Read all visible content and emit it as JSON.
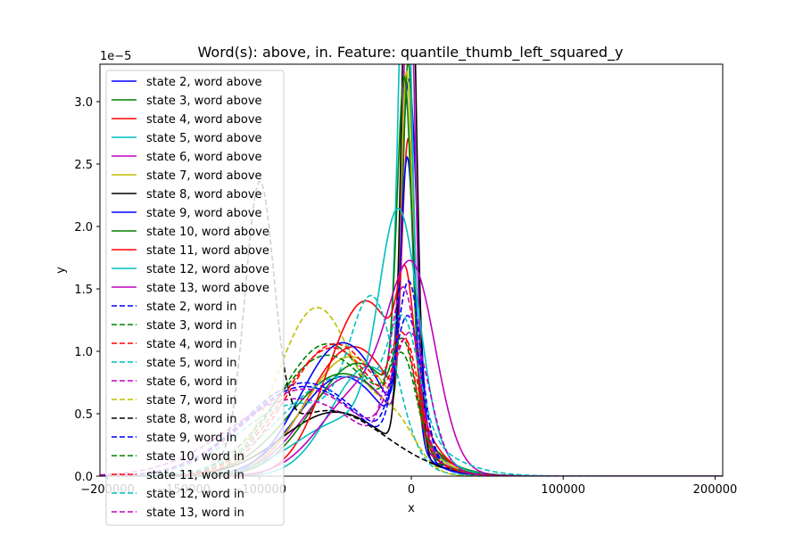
{
  "chart_data": {
    "type": "line",
    "title": "Word(s): above, in. Feature: quantile_thumb_left_squared_y",
    "xlabel": "x",
    "ylabel": "y",
    "y_offset_label": "1e−5",
    "xlim": [
      -205000,
      205000
    ],
    "ylim": [
      0,
      3.3
    ],
    "xticks": [
      {
        "value": -200000,
        "label": "−200000"
      },
      {
        "value": -100000,
        "label": "−100000"
      },
      {
        "value": 0,
        "label": "0"
      },
      {
        "value": 100000,
        "label": "100000"
      },
      {
        "value": 200000,
        "label": "200000"
      }
    ],
    "xticks_hidden": [
      {
        "value": -150000,
        "label": "−150000"
      }
    ],
    "yticks": [
      {
        "value": 0.0,
        "label": "0.0"
      },
      {
        "value": 0.5,
        "label": "0.5"
      },
      {
        "value": 1.0,
        "label": "1.0"
      },
      {
        "value": 1.5,
        "label": "1.5"
      },
      {
        "value": 2.0,
        "label": "2.0"
      },
      {
        "value": 2.5,
        "label": "2.5"
      },
      {
        "value": 3.0,
        "label": "3.0"
      }
    ],
    "legend_position": "upper-left",
    "grid": false,
    "series": [
      {
        "name": "state 2, word above",
        "color": "#0000ff",
        "dash": "solid",
        "components": [
          {
            "w": 0.6,
            "mu": -45000,
            "s": 30000
          },
          {
            "w": 0.4,
            "mu": -1500,
            "s": 5500
          }
        ]
      },
      {
        "name": "state 3, word above",
        "color": "#008000",
        "dash": "solid",
        "components": [
          {
            "w": 0.72,
            "mu": -45000,
            "s": 35000
          },
          {
            "w": 0.28,
            "mu": -2000,
            "s": 3800
          }
        ]
      },
      {
        "name": "state 4, word above",
        "color": "#ff0000",
        "dash": "solid",
        "components": [
          {
            "w": 0.78,
            "mu": -38000,
            "s": 30000
          },
          {
            "w": 0.22,
            "mu": -2000,
            "s": 4000
          }
        ]
      },
      {
        "name": "state 5, word above",
        "color": "#00bfbf",
        "dash": "solid",
        "components": [
          {
            "w": 0.55,
            "mu": -28000,
            "s": 25000
          },
          {
            "w": 0.45,
            "mu": -4000,
            "s": 4500
          }
        ]
      },
      {
        "name": "state 6, word above",
        "color": "#bf00bf",
        "dash": "solid",
        "components": [
          {
            "w": 0.6,
            "mu": -40000,
            "s": 30000
          },
          {
            "w": 0.4,
            "mu": -1500,
            "s": 4000
          }
        ]
      },
      {
        "name": "state 7, word above",
        "color": "#bfbf00",
        "dash": "solid",
        "components": [
          {
            "w": 0.72,
            "mu": -40000,
            "s": 30000
          },
          {
            "w": 0.28,
            "mu": -3000,
            "s": 4000
          }
        ]
      },
      {
        "name": "state 8, word above",
        "color": "#000000",
        "dash": "solid",
        "components": [
          {
            "w": 0.45,
            "mu": -50000,
            "s": 35000
          },
          {
            "w": 0.55,
            "mu": -1500,
            "s": 4500
          }
        ]
      },
      {
        "name": "state 9, word above",
        "color": "#0000ff",
        "dash": "solid",
        "components": [
          {
            "w": 0.75,
            "mu": -45000,
            "s": 28000
          },
          {
            "w": 0.25,
            "mu": -2500,
            "s": 4500
          }
        ]
      },
      {
        "name": "state 10, word above",
        "color": "#008000",
        "dash": "solid",
        "components": [
          {
            "w": 0.68,
            "mu": -35000,
            "s": 30000
          },
          {
            "w": 0.32,
            "mu": -4500,
            "s": 4800
          }
        ]
      },
      {
        "name": "state 11, word above",
        "color": "#ff0000",
        "dash": "solid",
        "components": [
          {
            "w": 0.88,
            "mu": -30000,
            "s": 25000
          },
          {
            "w": 0.12,
            "mu": -3500,
            "s": 5500
          }
        ]
      },
      {
        "name": "state 12, word above",
        "color": "#00bfbf",
        "dash": "solid",
        "components": [
          {
            "w": 0.4,
            "mu": -40000,
            "s": 35000
          },
          {
            "w": 0.6,
            "mu": -8000,
            "s": 13000
          }
        ]
      },
      {
        "name": "state 13, word above",
        "color": "#bf00bf",
        "dash": "solid",
        "components": [
          {
            "w": 0.5,
            "mu": -30000,
            "s": 28000
          },
          {
            "w": 0.5,
            "mu": 1500,
            "s": 15000
          }
        ]
      },
      {
        "name": "state 2, word in",
        "color": "#0000ff",
        "dash": "dashed",
        "components": [
          {
            "w": 0.75,
            "mu": -70000,
            "s": 40000
          },
          {
            "w": 0.25,
            "mu": -2000,
            "s": 9000
          }
        ]
      },
      {
        "name": "state 3, word in",
        "color": "#008000",
        "dash": "dashed",
        "components": [
          {
            "w": 0.85,
            "mu": -55000,
            "s": 32000
          },
          {
            "w": 0.15,
            "mu": -5000,
            "s": 9000
          }
        ]
      },
      {
        "name": "state 4, word in",
        "color": "#ff0000",
        "dash": "dashed",
        "components": [
          {
            "w": 0.85,
            "mu": -52000,
            "s": 33000
          },
          {
            "w": 0.15,
            "mu": -3000,
            "s": 8000
          }
        ]
      },
      {
        "name": "state 5, word in",
        "color": "#00bfbf",
        "dash": "dashed",
        "components": [
          {
            "w": 0.55,
            "mu": -75000,
            "s": 38000
          },
          {
            "w": 0.45,
            "mu": -25000,
            "s": 15000
          }
        ]
      },
      {
        "name": "state 6, word in",
        "color": "#bf00bf",
        "dash": "dashed",
        "components": [
          {
            "w": 0.7,
            "mu": -75000,
            "s": 45000
          },
          {
            "w": 0.3,
            "mu": -5000,
            "s": 9000
          }
        ]
      },
      {
        "name": "state 7, word in",
        "color": "#bfbf00",
        "dash": "dashed",
        "components": [
          {
            "w": 0.88,
            "mu": -62000,
            "s": 26000
          },
          {
            "w": 0.12,
            "mu": -10000,
            "s": 14000
          }
        ]
      },
      {
        "name": "state 8, word in",
        "color": "#000000",
        "dash": "dashed",
        "components": [
          {
            "w": 0.5,
            "mu": -100000,
            "s": 9500
          },
          {
            "w": 0.5,
            "mu": -55000,
            "s": 38000
          }
        ]
      },
      {
        "name": "state 9, word in",
        "color": "#0000ff",
        "dash": "dashed",
        "components": [
          {
            "w": 0.72,
            "mu": -70000,
            "s": 40000
          },
          {
            "w": 0.28,
            "mu": -1500,
            "s": 8000
          }
        ]
      },
      {
        "name": "state 10, word in",
        "color": "#008000",
        "dash": "dashed",
        "components": [
          {
            "w": 0.85,
            "mu": -55000,
            "s": 35000
          },
          {
            "w": 0.15,
            "mu": -5000,
            "s": 8000
          }
        ]
      },
      {
        "name": "state 11, word in",
        "color": "#ff0000",
        "dash": "dashed",
        "components": [
          {
            "w": 0.85,
            "mu": -50000,
            "s": 32000
          },
          {
            "w": 0.15,
            "mu": -5000,
            "s": 8000
          }
        ]
      },
      {
        "name": "state 12, word in",
        "color": "#00bfbf",
        "dash": "dashed",
        "components": [
          {
            "w": 0.8,
            "mu": -45000,
            "s": 40000
          },
          {
            "w": 0.2,
            "mu": -5000,
            "s": 10000
          }
        ]
      },
      {
        "name": "state 13, word in",
        "color": "#bf00bf",
        "dash": "dashed",
        "components": [
          {
            "w": 0.7,
            "mu": -70000,
            "s": 40000
          },
          {
            "w": 0.3,
            "mu": 0,
            "s": 12000
          }
        ]
      }
    ]
  }
}
